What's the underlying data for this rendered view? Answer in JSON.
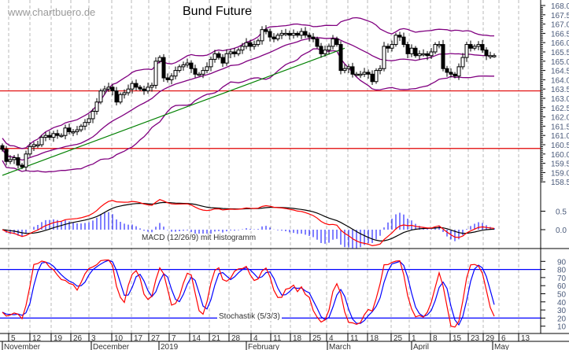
{
  "chart_data": {
    "type": "candlestick",
    "title": "Bund Future",
    "watermark": "www.chartbuero.de",
    "closes": [
      160.25,
      159.6,
      159.7,
      159.8,
      159.4,
      159.3,
      160.0,
      160.4,
      160.5,
      160.5,
      160.9,
      161.0,
      160.9,
      161.1,
      161.0,
      161.0,
      161.4,
      161.2,
      161.2,
      161.3,
      161.5,
      161.7,
      161.9,
      162.3,
      162.8,
      163.4,
      163.5,
      163.6,
      163.4,
      162.8,
      163.2,
      163.3,
      163.5,
      163.8,
      163.6,
      163.5,
      163.4,
      163.6,
      163.7,
      165.0,
      165.2,
      164.1,
      164.0,
      164.2,
      164.5,
      164.7,
      164.8,
      164.9,
      164.6,
      164.3,
      164.3,
      164.5,
      164.7,
      165.1,
      165.4,
      165.2,
      164.9,
      165.4,
      165.5,
      165.4,
      165.6,
      165.8,
      166.0,
      165.8,
      165.9,
      166.1,
      166.7,
      166.6,
      166.3,
      166.2,
      166.4,
      166.5,
      166.5,
      166.4,
      166.5,
      166.4,
      166.6,
      166.4,
      166.3,
      166.2,
      165.8,
      165.4,
      165.6,
      165.8,
      166.2,
      165.9,
      164.5,
      164.6,
      164.7,
      164.3,
      164.3,
      164.3,
      164.4,
      164.3,
      163.9,
      164.5,
      164.6,
      165.8,
      165.7,
      165.9,
      166.4,
      166.3,
      165.9,
      165.4,
      165.7,
      165.3,
      165.4,
      165.4,
      165.3,
      165.5,
      165.9,
      165.9,
      164.6,
      164.4,
      164.3,
      164.2,
      164.7,
      165.2,
      165.9,
      165.7,
      165.8,
      165.9,
      165.6,
      165.3,
      165.3,
      165.3
    ],
    "price_axis": {
      "min": 158.5,
      "max": 168.0,
      "step": 0.5
    },
    "support_lines": [
      163.4,
      160.3
    ],
    "trendline": {
      "from": {
        "i": 0,
        "price": 158.85
      },
      "to": {
        "i": 87,
        "price": 165.7
      }
    },
    "bollinger": {
      "period": 20,
      "stddev": 2
    },
    "macd": {
      "label": "MACD (12/26/9) mit Histogramm",
      "fast": 12,
      "slow": 26,
      "signal": 9,
      "ticks": [
        "0.5",
        "0.0"
      ]
    },
    "stochastic": {
      "label": "Stochastik (5/3/3)",
      "k": 5,
      "slow": 3,
      "d": 3,
      "levels": [
        80,
        20
      ],
      "ticks": [
        "90",
        "80",
        "70",
        "60",
        "50",
        "40",
        "30",
        "20",
        "10"
      ]
    },
    "x_ticks": [
      {
        "label": "5",
        "i": 1.6
      },
      {
        "label": "12",
        "i": 7
      },
      {
        "label": "19",
        "i": 12.4
      },
      {
        "label": "26",
        "i": 17.4
      },
      {
        "label": "3",
        "i": 22
      },
      {
        "label": "10",
        "i": 27.8
      },
      {
        "label": "17",
        "i": 32.8
      },
      {
        "label": "27",
        "i": 37.2
      },
      {
        "label": "7",
        "i": 42.4
      },
      {
        "label": "14",
        "i": 47.6
      },
      {
        "label": "21",
        "i": 52.6
      },
      {
        "label": "28",
        "i": 57.6
      },
      {
        "label": "4",
        "i": 63.2
      },
      {
        "label": "11",
        "i": 68.2
      },
      {
        "label": "18",
        "i": 73.2
      },
      {
        "label": "25",
        "i": 78.2
      },
      {
        "label": "4",
        "i": 82.4
      },
      {
        "label": "11",
        "i": 87.8
      },
      {
        "label": "18",
        "i": 92.8
      },
      {
        "label": "25",
        "i": 98.8
      },
      {
        "label": "1",
        "i": 103.4
      },
      {
        "label": "8",
        "i": 108.8
      },
      {
        "label": "15",
        "i": 113.8
      },
      {
        "label": "23",
        "i": 118.4
      },
      {
        "label": "29",
        "i": 122.2
      },
      {
        "label": "6",
        "i": 126.2
      },
      {
        "label": "13",
        "i": 131.2
      }
    ],
    "months": [
      {
        "label": "November",
        "i": 0
      },
      {
        "label": "December",
        "i": 22.6
      },
      {
        "label": "2019",
        "i": 39.8
      },
      {
        "label": "February",
        "i": 62
      },
      {
        "label": "March",
        "i": 82.6
      },
      {
        "label": "April",
        "i": 104
      },
      {
        "label": "May",
        "i": 124.6
      }
    ],
    "colors": {
      "bollinger": "#800080",
      "trend": "#008000",
      "support": "#e00000",
      "macd": "#ff0000",
      "signal": "#000000",
      "hist": "#0000ff",
      "stochK": "#ff0000",
      "stochD": "#0000ff",
      "level": "#0000ff",
      "axis": "#4a5a7a"
    }
  }
}
